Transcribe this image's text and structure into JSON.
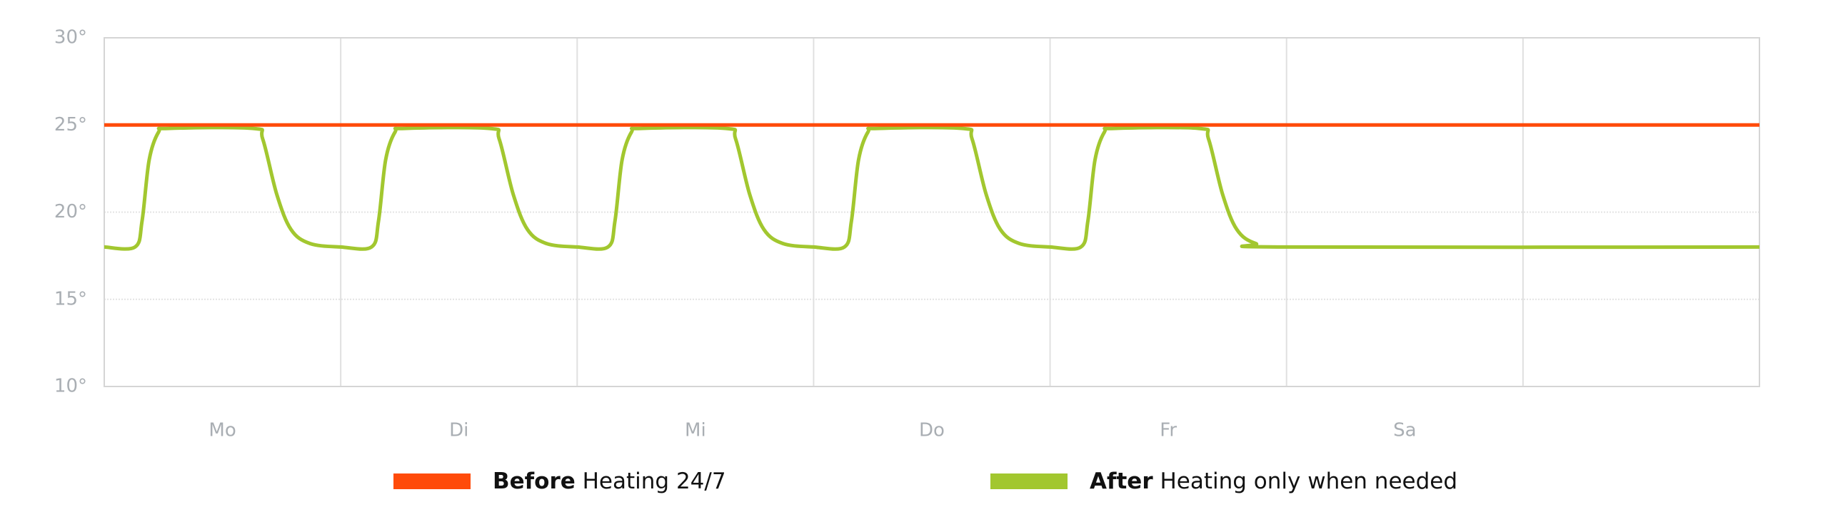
{
  "chart_data": {
    "type": "line",
    "categories": [
      "Mo",
      "Di",
      "Mi",
      "Do",
      "Fr",
      "Sa",
      null
    ],
    "xlim": [
      0,
      7
    ],
    "ylim": [
      10,
      30
    ],
    "yticks": [
      {
        "value": 10,
        "label": "10°"
      },
      {
        "value": 15,
        "label": "15°"
      },
      {
        "value": 20,
        "label": "20°"
      },
      {
        "value": 25,
        "label": "25°"
      },
      {
        "value": 30,
        "label": "30°"
      }
    ],
    "grid": true,
    "series": [
      {
        "name": "Before",
        "note": "Heating 24/7",
        "color": "#ff4b0a",
        "x": [
          0,
          7
        ],
        "values": [
          25,
          25
        ]
      },
      {
        "name": "After",
        "note": "Heating only when needed",
        "color": "#a2c72f",
        "x": [
          0,
          0.13,
          0.16,
          0.19,
          0.23,
          0.27,
          0.63,
          0.67,
          0.73,
          0.79,
          0.87,
          1,
          1.13,
          1.16,
          1.19,
          1.23,
          1.27,
          1.63,
          1.67,
          1.73,
          1.79,
          1.87,
          2,
          2.13,
          2.16,
          2.19,
          2.23,
          2.27,
          2.63,
          2.67,
          2.73,
          2.79,
          2.87,
          3,
          3.13,
          3.16,
          3.19,
          3.23,
          3.27,
          3.63,
          3.67,
          3.73,
          3.79,
          3.87,
          4,
          4.13,
          4.16,
          4.19,
          4.23,
          4.27,
          4.63,
          4.67,
          4.73,
          4.79,
          4.87,
          5,
          7
        ],
        "values": [
          18,
          18,
          19.5,
          23,
          24.6,
          24.8,
          24.8,
          24.2,
          21,
          19,
          18.2,
          18,
          18,
          19.5,
          23,
          24.6,
          24.8,
          24.8,
          24.2,
          21,
          19,
          18.2,
          18,
          18,
          19.5,
          23,
          24.6,
          24.8,
          24.8,
          24.2,
          21,
          19,
          18.2,
          18,
          18,
          19.5,
          23,
          24.6,
          24.8,
          24.8,
          24.2,
          21,
          19,
          18.2,
          18,
          18,
          19.5,
          23,
          24.6,
          24.8,
          24.8,
          24.2,
          21,
          19,
          18.2,
          18,
          18
        ]
      }
    ]
  }
}
